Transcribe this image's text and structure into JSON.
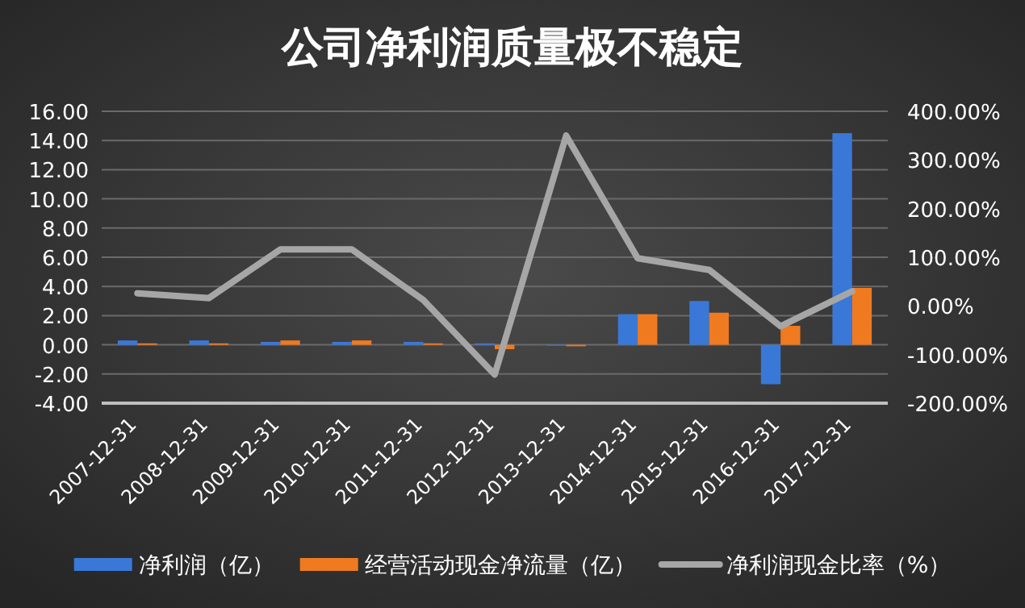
{
  "chart_data": {
    "type": "bar",
    "title": "公司净利润质量极不稳定",
    "categories": [
      "2007-12-31",
      "2008-12-31",
      "2009-12-31",
      "2010-12-31",
      "2011-12-31",
      "2012-12-31",
      "2013-12-31",
      "2014-12-31",
      "2015-12-31",
      "2016-12-31",
      "2017-12-31"
    ],
    "series": [
      {
        "name": "净利润（亿）",
        "color": "#3a78d8",
        "values": [
          0.3,
          0.3,
          0.2,
          0.2,
          0.2,
          0.1,
          0.0,
          2.1,
          3.0,
          -2.7,
          14.5
        ]
      },
      {
        "name": "经营活动现金净流量（亿）",
        "color": "#f07a20",
        "values": [
          0.1,
          0.1,
          0.3,
          0.3,
          0.1,
          -0.3,
          -0.1,
          2.1,
          2.2,
          1.3,
          3.9
        ]
      },
      {
        "name": "净利润现金比率（%）",
        "type": "line",
        "axis": "y2",
        "color": "#a6a6a6",
        "values": [
          26,
          16,
          116,
          116,
          12,
          -141,
          350,
          98,
          74,
          -42,
          30
        ]
      }
    ],
    "ylim": [
      -4,
      16
    ],
    "yticks": [
      {
        "value": -4,
        "label": "-4.00"
      },
      {
        "value": -2,
        "label": "-2.00"
      },
      {
        "value": 0,
        "label": "0.00"
      },
      {
        "value": 2,
        "label": "2.00"
      },
      {
        "value": 4,
        "label": "4.00"
      },
      {
        "value": 6,
        "label": "6.00"
      },
      {
        "value": 8,
        "label": "8.00"
      },
      {
        "value": 10,
        "label": "10.00"
      },
      {
        "value": 12,
        "label": "12.00"
      },
      {
        "value": 14,
        "label": "14.00"
      },
      {
        "value": 16,
        "label": "16.00"
      }
    ],
    "y2lim": [
      -200,
      400
    ],
    "y2ticks": [
      {
        "value": -200,
        "label": "-200.00%"
      },
      {
        "value": -100,
        "label": "-100.00%"
      },
      {
        "value": 0,
        "label": "0.00%"
      },
      {
        "value": 100,
        "label": "100.00%"
      },
      {
        "value": 200,
        "label": "200.00%"
      },
      {
        "value": 300,
        "label": "300.00%"
      },
      {
        "value": 400,
        "label": "400.00%"
      }
    ],
    "grid": "y",
    "legend": "bottom"
  }
}
